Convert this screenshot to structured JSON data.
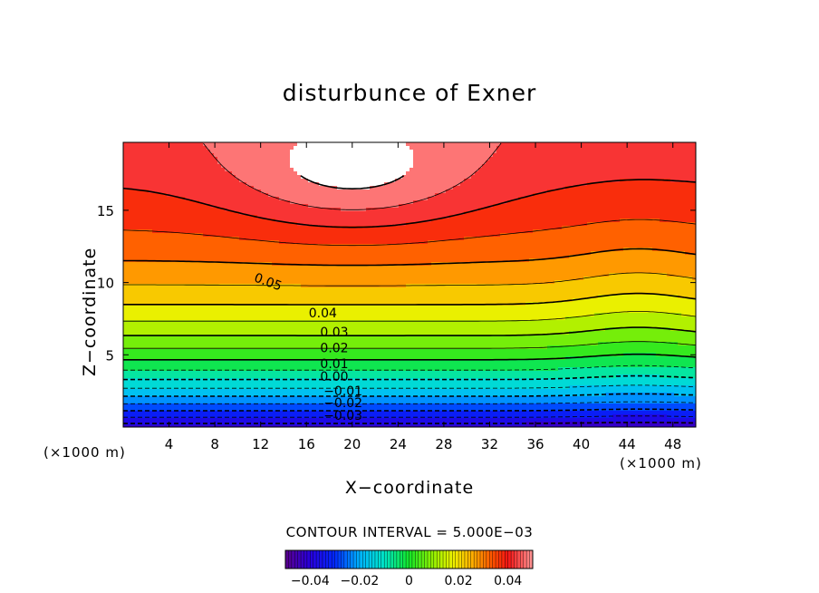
{
  "chart_data": {
    "type": "heatmap",
    "title": "disturbunce of Exner",
    "xlabel": "X−coordinate",
    "ylabel": "Z−coordinate",
    "x_unit_left": "(×1000 m)",
    "x_unit_right": "(×1000 m)",
    "xlim": [
      0,
      50
    ],
    "ylim": [
      0,
      19.7
    ],
    "x_ticks": [
      4,
      8,
      12,
      16,
      20,
      24,
      28,
      32,
      36,
      40,
      44,
      48
    ],
    "x_tick_labels": [
      "4",
      "8",
      "12",
      "16",
      "20",
      "24",
      "28",
      "32",
      "36",
      "40",
      "44",
      "48"
    ],
    "y_ticks": [
      5,
      10,
      15
    ],
    "y_tick_labels": [
      "5",
      "10",
      "15"
    ],
    "contour_interval_text": "CONTOUR INTERVAL = 5.000E−03",
    "contour_interval": 0.005,
    "contour_labels": [
      {
        "text": "0.05",
        "x": 11.5,
        "z": 10.4
      },
      {
        "text": "0.04",
        "x": 16.2,
        "z": 7.9
      },
      {
        "text": "0.03",
        "x": 17.2,
        "z": 6.6
      },
      {
        "text": "0.02",
        "x": 17.2,
        "z": 5.5
      },
      {
        "text": "0.01",
        "x": 17.2,
        "z": 4.4
      },
      {
        "text": "0.00",
        "x": 17.2,
        "z": 3.5
      },
      {
        "text": "−0.01",
        "x": 17.5,
        "z": 2.5
      },
      {
        "text": "−0.02",
        "x": 17.5,
        "z": 1.7
      },
      {
        "text": "−0.03",
        "x": 17.5,
        "z": 0.8
      }
    ],
    "colorbar": {
      "min": -0.05,
      "max": 0.05,
      "tick_values": [
        -0.04,
        -0.02,
        0,
        0.02,
        0.04
      ],
      "tick_labels": [
        "−0.04",
        "−0.02",
        "0",
        "0.02",
        "0.04"
      ]
    },
    "field_description": "increasing with height; white region above 0.05 near top center"
  }
}
